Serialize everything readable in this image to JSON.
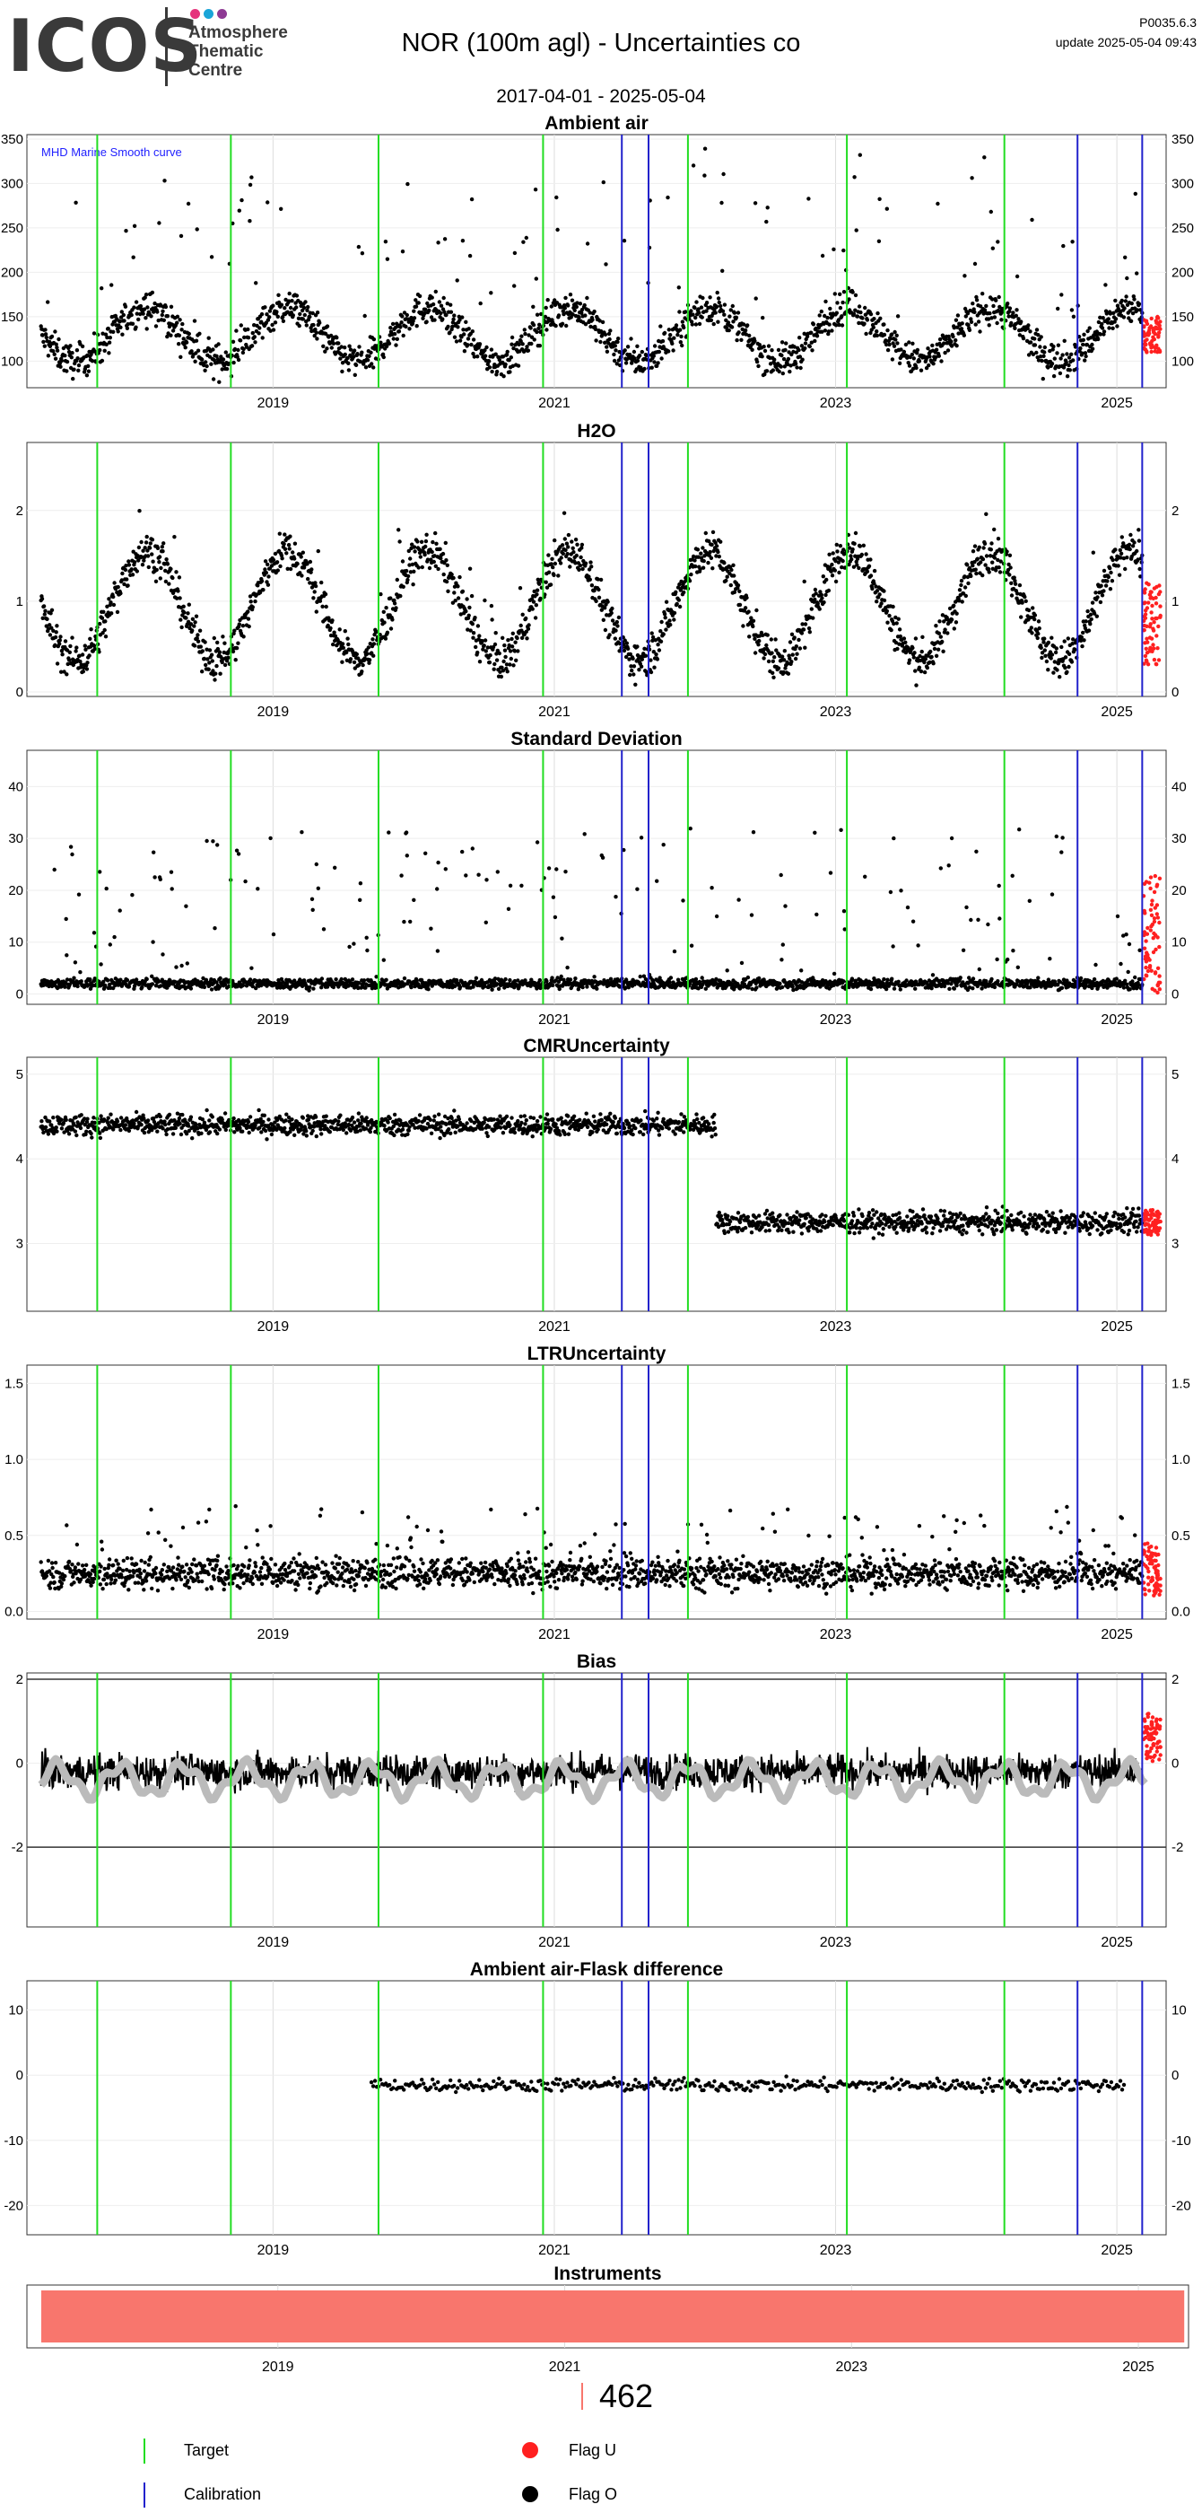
{
  "header": {
    "logo_text": "ICOS",
    "logo_lines": [
      "Atmosphere",
      "Thematic",
      "Centre"
    ],
    "logo_colors": [
      "#e5337c",
      "#1aa5d8",
      "#8e3a94"
    ],
    "title": "NOR  (100m agl) - Uncertainties co",
    "date_range": "2017-04-01 - 2025-05-04",
    "version": "P0035.6.3",
    "update": "update  2025-05-04 09:43"
  },
  "colors": {
    "target_line": "#22dd22",
    "calibration_line": "#2222cc",
    "flag_u": "#ff2020",
    "flag_o": "#000000",
    "bias_smooth": "#bbbbbb",
    "instrument_bar": "#f8766d",
    "smooth_label": "#2222ff"
  },
  "x_axis": {
    "range": [
      2017.25,
      2025.35
    ],
    "ticks": [
      2019,
      2021,
      2023,
      2025
    ],
    "tick_labels": [
      "2019",
      "2021",
      "2023",
      "2025"
    ]
  },
  "events": {
    "target_dates": [
      2017.75,
      2018.7,
      2019.75,
      2020.92,
      2021.95,
      2023.08,
      2024.2
    ],
    "calibration_dates": [
      2021.48,
      2021.67,
      2024.72,
      2025.18
    ]
  },
  "chart_data": [
    {
      "type": "scatter",
      "title": "Ambient air",
      "annotation": "MHD Marine Smooth curve",
      "ylim": [
        70,
        355
      ],
      "y_ticks": [
        100,
        150,
        200,
        250,
        300,
        350
      ],
      "y_tick_labels": [
        "100",
        "150",
        "200",
        "250",
        "300",
        "350"
      ],
      "baseline": 130,
      "amplitude": 30,
      "noise": 22,
      "spikes": 140,
      "spike_max": 180,
      "flag_u_range": [
        110,
        150
      ]
    },
    {
      "type": "scatter",
      "title": "H2O",
      "ylim": [
        -0.05,
        2.75
      ],
      "y_ticks": [
        0,
        1,
        2
      ],
      "y_tick_labels": [
        "0",
        "1",
        "2"
      ],
      "baseline": 0.95,
      "amplitude": 0.6,
      "noise": 0.25,
      "spikes": 40,
      "spike_max": 0.7,
      "flag_u_range": [
        0.3,
        1.2
      ]
    },
    {
      "type": "scatter",
      "title": "Standard Deviation",
      "ylim": [
        -2,
        47
      ],
      "y_ticks": [
        0,
        10,
        20,
        30,
        40
      ],
      "y_tick_labels": [
        "0",
        "10",
        "20",
        "30",
        "40"
      ],
      "baseline": 2,
      "amplitude": 0,
      "noise": 1.2,
      "spikes": 260,
      "spike_max": 30,
      "flag_u_range": [
        0,
        23
      ]
    },
    {
      "type": "scatter",
      "title": "CMRUncertainty",
      "ylim": [
        2.2,
        5.2
      ],
      "y_ticks": [
        3,
        4,
        5
      ],
      "y_tick_labels": [
        "3",
        "4",
        "5"
      ],
      "segments": [
        {
          "x0": 2017.3,
          "x1": 2022.15,
          "level": 4.4
        },
        {
          "x0": 2022.15,
          "x1": 2025.3,
          "level": 3.25
        }
      ],
      "noise": 0.15,
      "flag_u_range": [
        3.1,
        3.4
      ]
    },
    {
      "type": "scatter",
      "title": "LTRUncertainty",
      "ylim": [
        -0.05,
        1.62
      ],
      "y_ticks": [
        0.0,
        0.5,
        1.0,
        1.5
      ],
      "y_tick_labels": [
        "0.0",
        "0.5",
        "1.0",
        "1.5"
      ],
      "baseline": 0.25,
      "amplitude": 0,
      "noise": 0.12,
      "spikes": 160,
      "spike_max": 0.45,
      "flag_u_range": [
        0.1,
        0.45
      ]
    },
    {
      "type": "line",
      "title": "Bias",
      "ylim": [
        -3.9,
        2.15
      ],
      "y_ticks": [
        -2,
        0,
        2
      ],
      "y_tick_labels": [
        "-2",
        "0",
        "2"
      ],
      "hlines": [
        -2,
        2
      ],
      "baseline": -0.2,
      "amplitude": 0,
      "noise": 0.5,
      "smooth_level": -0.4,
      "flag_u_range": [
        0,
        1.2
      ]
    },
    {
      "type": "scatter",
      "title": "Ambient air-Flask difference",
      "ylim": [
        -24.5,
        14.5
      ],
      "y_ticks": [
        -20,
        -10,
        0,
        10
      ],
      "y_tick_labels": [
        "-20",
        "-10",
        "0",
        "10"
      ],
      "x_start": 2019.7,
      "x_end": 2025.05,
      "baseline": -1.5,
      "amplitude": 0,
      "noise": 1.2,
      "n_points": 420
    },
    {
      "type": "bar",
      "title": "Instruments",
      "x_start": 2017.35,
      "x_end": 2025.32
    }
  ],
  "footer": {
    "instrument_count": "462",
    "legend": [
      {
        "label": "Target",
        "marker": "line",
        "color": "#22dd22"
      },
      {
        "label": "Calibration",
        "marker": "line",
        "color": "#2222cc"
      },
      {
        "label": "Flag U",
        "marker": "dot",
        "color": "#ff2020"
      },
      {
        "label": "Flag O",
        "marker": "dot",
        "color": "#000000"
      }
    ]
  }
}
